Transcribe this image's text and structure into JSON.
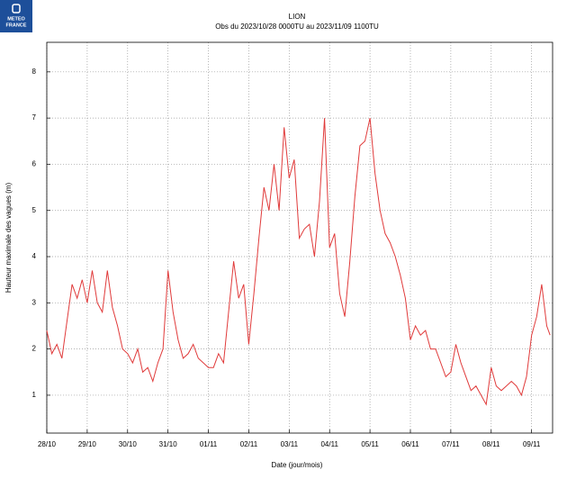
{
  "logo": [
    "METEO",
    "FRANCE"
  ],
  "chart_data": {
    "type": "line",
    "title": "LION",
    "subtitle": "Obs du 2023/10/28 0000TU au 2023/11/09 1100TU",
    "x_label": "Date (jour/mois)",
    "y_label": "Hauteur maximale des vagues (m)",
    "x": [
      0,
      0.125,
      0.25,
      0.375,
      0.5,
      0.625,
      0.75,
      0.875,
      1,
      1.125,
      1.25,
      1.375,
      1.5,
      1.625,
      1.75,
      1.875,
      2,
      2.125,
      2.25,
      2.375,
      2.5,
      2.625,
      2.75,
      2.875,
      3,
      3.125,
      3.25,
      3.375,
      3.5,
      3.625,
      3.75,
      3.875,
      4,
      4.125,
      4.25,
      4.375,
      4.5,
      4.625,
      4.75,
      4.875,
      5,
      5.125,
      5.25,
      5.375,
      5.5,
      5.625,
      5.75,
      5.875,
      6,
      6.125,
      6.25,
      6.375,
      6.5,
      6.625,
      6.75,
      6.875,
      7,
      7.125,
      7.25,
      7.375,
      7.5,
      7.625,
      7.75,
      7.875,
      8,
      8.125,
      8.25,
      8.375,
      8.5,
      8.625,
      8.75,
      8.875,
      9,
      9.125,
      9.25,
      9.375,
      9.5,
      9.625,
      9.75,
      9.875,
      10,
      10.125,
      10.25,
      10.375,
      10.5,
      10.625,
      10.75,
      10.875,
      11,
      11.125,
      11.25,
      11.375,
      11.5,
      11.625,
      11.75,
      11.875,
      12,
      12.125,
      12.25,
      12.375,
      12.458
    ],
    "series": [
      {
        "name": "LION",
        "color": "#e03a3a",
        "values": [
          2.4,
          1.9,
          2.1,
          1.8,
          2.6,
          3.4,
          3.1,
          3.5,
          3.0,
          3.7,
          3.0,
          2.8,
          3.7,
          2.9,
          2.5,
          2.0,
          1.9,
          1.7,
          2.0,
          1.5,
          1.6,
          1.3,
          1.7,
          2.0,
          3.7,
          2.8,
          2.2,
          1.8,
          1.9,
          2.1,
          1.8,
          1.7,
          1.6,
          1.6,
          1.9,
          1.7,
          2.8,
          3.9,
          3.1,
          3.4,
          2.1,
          3.2,
          4.4,
          5.5,
          5.0,
          6.0,
          5.0,
          6.8,
          5.7,
          6.1,
          4.4,
          4.6,
          4.7,
          4.0,
          5.2,
          7.0,
          4.2,
          4.5,
          3.2,
          2.7,
          3.9,
          5.3,
          6.4,
          6.5,
          7.0,
          5.8,
          5.0,
          4.5,
          4.3,
          4.0,
          3.6,
          3.1,
          2.2,
          2.5,
          2.3,
          2.4,
          2.0,
          2.0,
          1.7,
          1.4,
          1.5,
          2.1,
          1.7,
          1.4,
          1.1,
          1.2,
          1.0,
          0.8,
          1.6,
          1.2,
          1.1,
          1.2,
          1.3,
          1.2,
          1.0,
          1.4,
          2.3,
          2.7,
          3.4,
          2.5,
          2.3
        ]
      }
    ],
    "xlim": [
      0,
      12.52
    ],
    "ylim": [
      0.18,
      8.64
    ],
    "xticks": [
      {
        "value": 0,
        "label": "28/10"
      },
      {
        "value": 1,
        "label": "29/10"
      },
      {
        "value": 2,
        "label": "30/10"
      },
      {
        "value": 3,
        "label": "31/10"
      },
      {
        "value": 4,
        "label": "01/11"
      },
      {
        "value": 5,
        "label": "02/11"
      },
      {
        "value": 6,
        "label": "03/11"
      },
      {
        "value": 7,
        "label": "04/11"
      },
      {
        "value": 8,
        "label": "05/11"
      },
      {
        "value": 9,
        "label": "06/11"
      },
      {
        "value": 10,
        "label": "07/11"
      },
      {
        "value": 11,
        "label": "08/11"
      },
      {
        "value": 12,
        "label": "09/11"
      }
    ],
    "yticks": [
      1,
      2,
      3,
      4,
      5,
      6,
      7,
      8
    ],
    "grid": true
  }
}
